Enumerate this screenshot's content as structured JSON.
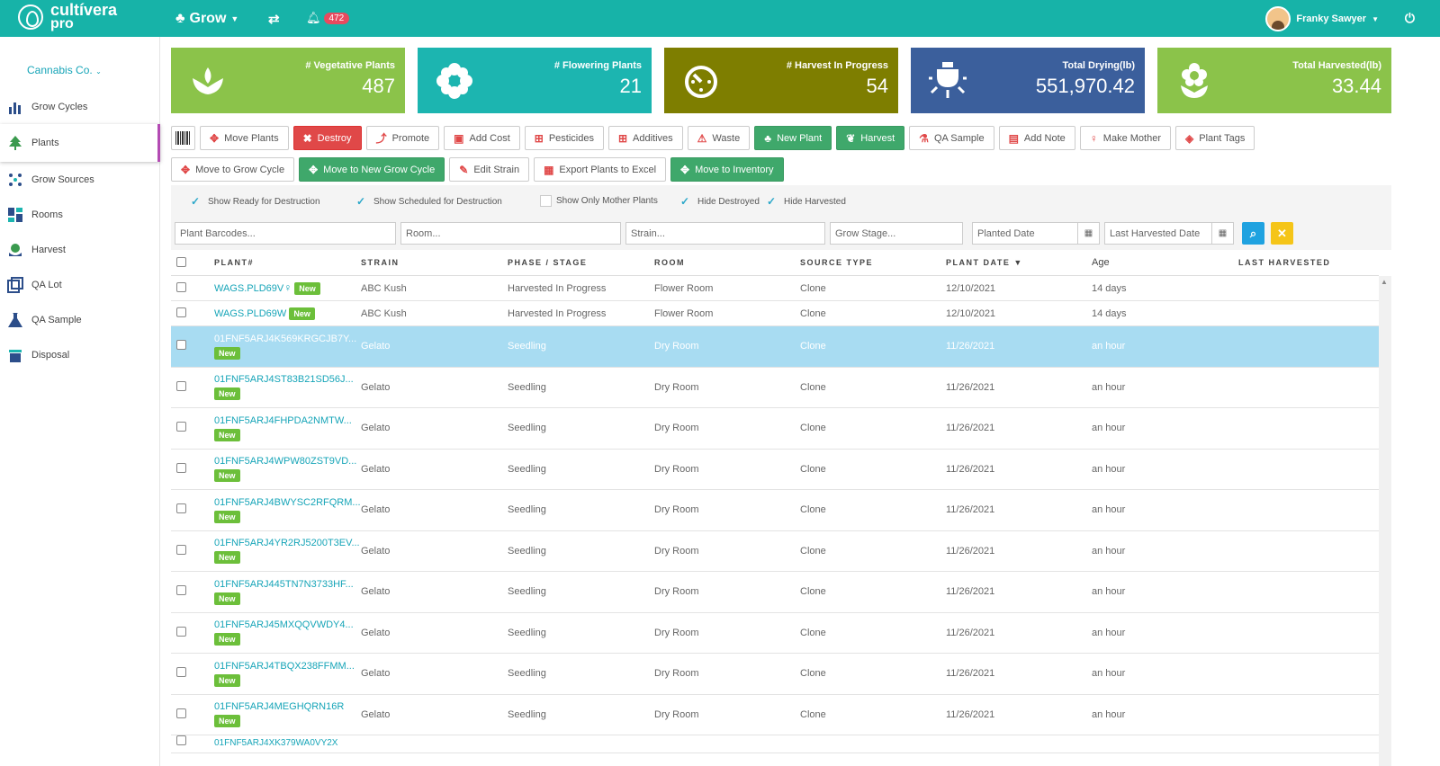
{
  "topbar": {
    "brand": "cultívera",
    "brand_sub": "pro",
    "module": "Grow",
    "notification_count": "472",
    "user_name": "Franky Sawyer"
  },
  "sidebar": {
    "org": "Cannabis Co.",
    "items": [
      {
        "label": "Grow Cycles",
        "icon": "bar-chart-icon"
      },
      {
        "label": "Plants",
        "icon": "tree-icon"
      },
      {
        "label": "Grow Sources",
        "icon": "dots-icon"
      },
      {
        "label": "Rooms",
        "icon": "grid-icon"
      },
      {
        "label": "Harvest",
        "icon": "harvest-icon"
      },
      {
        "label": "QA Lot",
        "icon": "squares-icon"
      },
      {
        "label": "QA Sample",
        "icon": "flask-icon"
      },
      {
        "label": "Disposal",
        "icon": "trash-icon"
      }
    ]
  },
  "cards": [
    {
      "label": "# Vegetative Plants",
      "value": "487",
      "color": "#8bc34a"
    },
    {
      "label": "# Flowering Plants",
      "value": "21",
      "color": "#1cb5b0"
    },
    {
      "label": "# Harvest In Progress",
      "value": "54",
      "color": "#7e7e00"
    },
    {
      "label": "Total Drying(lb)",
      "value": "551,970.42",
      "color": "#3b5f9c"
    },
    {
      "label": "Total Harvested(lb)",
      "value": "33.44",
      "color": "#8bc34a"
    }
  ],
  "toolbar": {
    "row1": [
      "Move Plants",
      "Destroy",
      "Promote",
      "Add Cost",
      "Pesticides",
      "Additives",
      "Waste",
      "New Plant",
      "Harvest",
      "QA Sample",
      "Add Note",
      "Make Mother",
      "Plant Tags"
    ],
    "row2": [
      "Move to Grow Cycle",
      "Move to New Grow Cycle",
      "Edit Strain",
      "Export Plants to Excel",
      "Move to Inventory"
    ]
  },
  "filters": {
    "show_ready": "Show Ready for Destruction",
    "show_scheduled": "Show Scheduled for Destruction",
    "show_mother": "Show Only Mother Plants",
    "hide_destroyed": "Hide Destroyed",
    "hide_harvested": "Hide Harvested"
  },
  "search": {
    "barcodes": "Plant Barcodes...",
    "room": "Room...",
    "strain": "Strain...",
    "grow_stage": "Grow Stage...",
    "planted_date": "Planted Date",
    "last_harvested_date": "Last Harvested Date"
  },
  "table": {
    "headers": [
      "PLANT#",
      "STRAIN",
      "PHASE / STAGE",
      "ROOM",
      "SOURCE TYPE",
      "PLANT DATE ▼",
      "Age",
      "LAST HARVESTED"
    ],
    "new_label": "New",
    "rows": [
      {
        "plant": "WAGS.PLD69V",
        "strain": "ABC Kush",
        "phase": "Harvested In Progress",
        "room": "Flower Room",
        "source": "Clone",
        "date": "12/10/2021",
        "age": "14 days"
      },
      {
        "plant": "WAGS.PLD69W",
        "strain": "ABC Kush",
        "phase": "Harvested In Progress",
        "room": "Flower Room",
        "source": "Clone",
        "date": "12/10/2021",
        "age": "14 days"
      },
      {
        "plant": "01FNF5ARJ4K569KRGCJB7Y...",
        "strain": "Gelato",
        "phase": "Seedling",
        "room": "Dry Room",
        "source": "Clone",
        "date": "11/26/2021",
        "age": "an hour"
      },
      {
        "plant": "01FNF5ARJ4ST83B21SD56J...",
        "strain": "Gelato",
        "phase": "Seedling",
        "room": "Dry Room",
        "source": "Clone",
        "date": "11/26/2021",
        "age": "an hour"
      },
      {
        "plant": "01FNF5ARJ4FHPDA2NMTW...",
        "strain": "Gelato",
        "phase": "Seedling",
        "room": "Dry Room",
        "source": "Clone",
        "date": "11/26/2021",
        "age": "an hour"
      },
      {
        "plant": "01FNF5ARJ4WPW80ZST9VD...",
        "strain": "Gelato",
        "phase": "Seedling",
        "room": "Dry Room",
        "source": "Clone",
        "date": "11/26/2021",
        "age": "an hour"
      },
      {
        "plant": "01FNF5ARJ4BWYSC2RFQRM...",
        "strain": "Gelato",
        "phase": "Seedling",
        "room": "Dry Room",
        "source": "Clone",
        "date": "11/26/2021",
        "age": "an hour"
      },
      {
        "plant": "01FNF5ARJ4YR2RJ5200T3EV...",
        "strain": "Gelato",
        "phase": "Seedling",
        "room": "Dry Room",
        "source": "Clone",
        "date": "11/26/2021",
        "age": "an hour"
      },
      {
        "plant": "01FNF5ARJ445TN7N3733HF...",
        "strain": "Gelato",
        "phase": "Seedling",
        "room": "Dry Room",
        "source": "Clone",
        "date": "11/26/2021",
        "age": "an hour"
      },
      {
        "plant": "01FNF5ARJ45MXQQVWDY4...",
        "strain": "Gelato",
        "phase": "Seedling",
        "room": "Dry Room",
        "source": "Clone",
        "date": "11/26/2021",
        "age": "an hour"
      },
      {
        "plant": "01FNF5ARJ4TBQX238FFMM...",
        "strain": "Gelato",
        "phase": "Seedling",
        "room": "Dry Room",
        "source": "Clone",
        "date": "11/26/2021",
        "age": "an hour"
      },
      {
        "plant": "01FNF5ARJ4MEGHQRN16R",
        "strain": "Gelato",
        "phase": "Seedling",
        "room": "Dry Room",
        "source": "Clone",
        "date": "11/26/2021",
        "age": "an hour"
      },
      {
        "plant": "01FNF5ARJ4XK379WA0VY2X",
        "strain": "",
        "phase": "",
        "room": "",
        "source": "",
        "date": "",
        "age": ""
      }
    ]
  }
}
